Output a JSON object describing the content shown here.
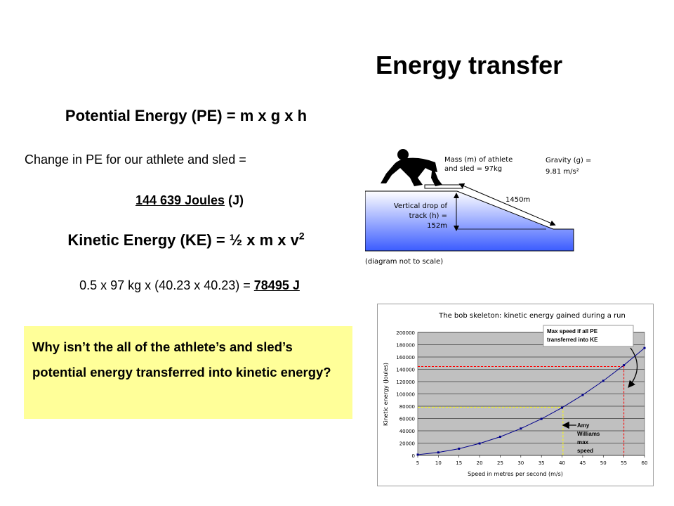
{
  "title": "Energy transfer",
  "pe_heading": "Potential Energy (PE) = m x g x h",
  "pe_change": "Change in PE for our athlete and sled =",
  "pe_value": {
    "number": "144 639 Joules",
    "unit": " (J)"
  },
  "ke_heading": {
    "text": "Kinetic Energy (KE) = ½ x m x v",
    "sup": "2"
  },
  "ke_calc": {
    "expr": "0.5 x 97 kg x (40.23 x 40.23) = ",
    "result": "78495 J"
  },
  "question": "Why isn’t the all of the athlete’s and sled’s potential energy transferred into kinetic energy?",
  "diagram": {
    "mass_label": [
      "Mass (m) of athlete",
      "and sled = 97kg"
    ],
    "gravity_label": [
      "Gravity (g) =",
      "9.81 m/s²"
    ],
    "track_length": "1450m",
    "vertical_drop": [
      "Vertical drop of",
      "track (h) =",
      "152m"
    ],
    "note": "(diagram not to scale)",
    "colors": {
      "ramp_top": "#ffffff",
      "ramp_bottom": "#3b5cff"
    }
  },
  "chart_data": {
    "type": "line",
    "title": "The bob skeleton:  kinetic energy gained during a run",
    "xlabel": "Speed in metres per second (m/s)",
    "ylabel": "Kinetic energy (Joules)",
    "x": [
      5,
      10,
      15,
      20,
      25,
      30,
      35,
      40,
      45,
      50,
      55,
      60
    ],
    "series": [
      {
        "values": [
          1212,
          4850,
          10913,
          19400,
          30313,
          43650,
          59413,
          77600,
          98213,
          121250,
          146713,
          174600
        ]
      }
    ],
    "xlim": [
      5,
      60
    ],
    "ylim": [
      0,
      200000
    ],
    "xticks": [
      "5",
      "10",
      "15",
      "20",
      "25",
      "30",
      "35",
      "40",
      "45",
      "50",
      "55",
      "60"
    ],
    "yticks": [
      "0",
      "20000",
      "40000",
      "60000",
      "80000",
      "100000",
      "120000",
      "140000",
      "160000",
      "180000",
      "200000"
    ],
    "grid": true,
    "annotations": [
      {
        "text": "Max speed if all PE transferred into KE",
        "x": 55,
        "y": 144639,
        "color": "#ff0000"
      },
      {
        "text": [
          "Amy",
          "Williams",
          "max",
          "speed"
        ],
        "x": 40.23,
        "y": 78495,
        "color": "#ffff00"
      }
    ],
    "colors": {
      "line": "#00008b",
      "plot_bg": "#c0c0c0"
    }
  }
}
